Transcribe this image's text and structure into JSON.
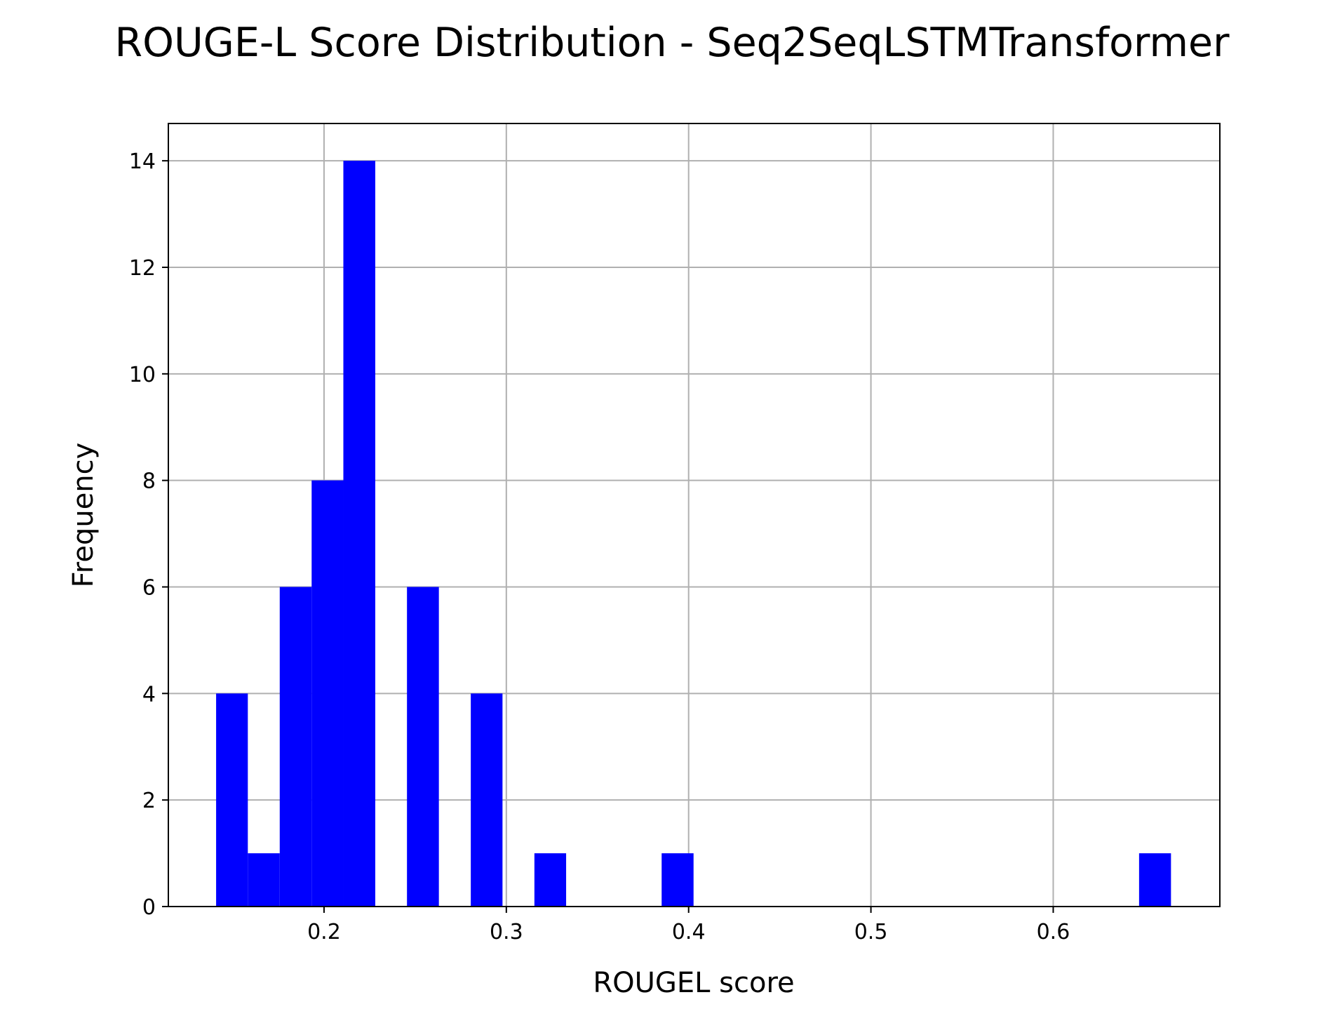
{
  "chart_data": {
    "type": "bar",
    "title": "ROUGE-L Score Distribution - Seq2SeqLSTMTransformer",
    "xlabel": "ROUGEL score",
    "ylabel": "Frequency",
    "xlim": [
      0.1146,
      0.6914
    ],
    "ylim": [
      0,
      14.7
    ],
    "xticks": [
      0.2,
      0.3,
      0.4,
      0.5,
      0.6
    ],
    "xtick_labels": [
      "0.2",
      "0.3",
      "0.4",
      "0.5",
      "0.6"
    ],
    "yticks": [
      0,
      2,
      4,
      6,
      8,
      10,
      12,
      14
    ],
    "ytick_labels": [
      "0",
      "2",
      "4",
      "6",
      "8",
      "10",
      "12",
      "14"
    ],
    "grid": true,
    "bar_color": "#0000ff",
    "bins": [
      {
        "x0": 0.1408,
        "x1": 0.1582,
        "count": 4
      },
      {
        "x0": 0.1582,
        "x1": 0.1757,
        "count": 1
      },
      {
        "x0": 0.1757,
        "x1": 0.1932,
        "count": 6
      },
      {
        "x0": 0.1932,
        "x1": 0.2106,
        "count": 8
      },
      {
        "x0": 0.2106,
        "x1": 0.2281,
        "count": 14
      },
      {
        "x0": 0.2281,
        "x1": 0.2455,
        "count": 0
      },
      {
        "x0": 0.2455,
        "x1": 0.263,
        "count": 6
      },
      {
        "x0": 0.263,
        "x1": 0.2805,
        "count": 0
      },
      {
        "x0": 0.2805,
        "x1": 0.2979,
        "count": 4
      },
      {
        "x0": 0.2979,
        "x1": 0.3154,
        "count": 0
      },
      {
        "x0": 0.3154,
        "x1": 0.3328,
        "count": 1
      },
      {
        "x0": 0.3328,
        "x1": 0.3503,
        "count": 0
      },
      {
        "x0": 0.3503,
        "x1": 0.3678,
        "count": 0
      },
      {
        "x0": 0.3678,
        "x1": 0.3852,
        "count": 0
      },
      {
        "x0": 0.3852,
        "x1": 0.4027,
        "count": 1
      },
      {
        "x0": 0.4027,
        "x1": 0.4201,
        "count": 0
      },
      {
        "x0": 0.4201,
        "x1": 0.4376,
        "count": 0
      },
      {
        "x0": 0.4376,
        "x1": 0.4551,
        "count": 0
      },
      {
        "x0": 0.4551,
        "x1": 0.4725,
        "count": 0
      },
      {
        "x0": 0.4725,
        "x1": 0.49,
        "count": 0
      },
      {
        "x0": 0.49,
        "x1": 0.5074,
        "count": 0
      },
      {
        "x0": 0.5074,
        "x1": 0.5249,
        "count": 0
      },
      {
        "x0": 0.5249,
        "x1": 0.5424,
        "count": 0
      },
      {
        "x0": 0.5424,
        "x1": 0.5598,
        "count": 0
      },
      {
        "x0": 0.5598,
        "x1": 0.5773,
        "count": 0
      },
      {
        "x0": 0.5773,
        "x1": 0.5947,
        "count": 0
      },
      {
        "x0": 0.5947,
        "x1": 0.6122,
        "count": 0
      },
      {
        "x0": 0.6122,
        "x1": 0.6297,
        "count": 0
      },
      {
        "x0": 0.6297,
        "x1": 0.6471,
        "count": 0
      },
      {
        "x0": 0.6471,
        "x1": 0.6646,
        "count": 1
      }
    ]
  }
}
